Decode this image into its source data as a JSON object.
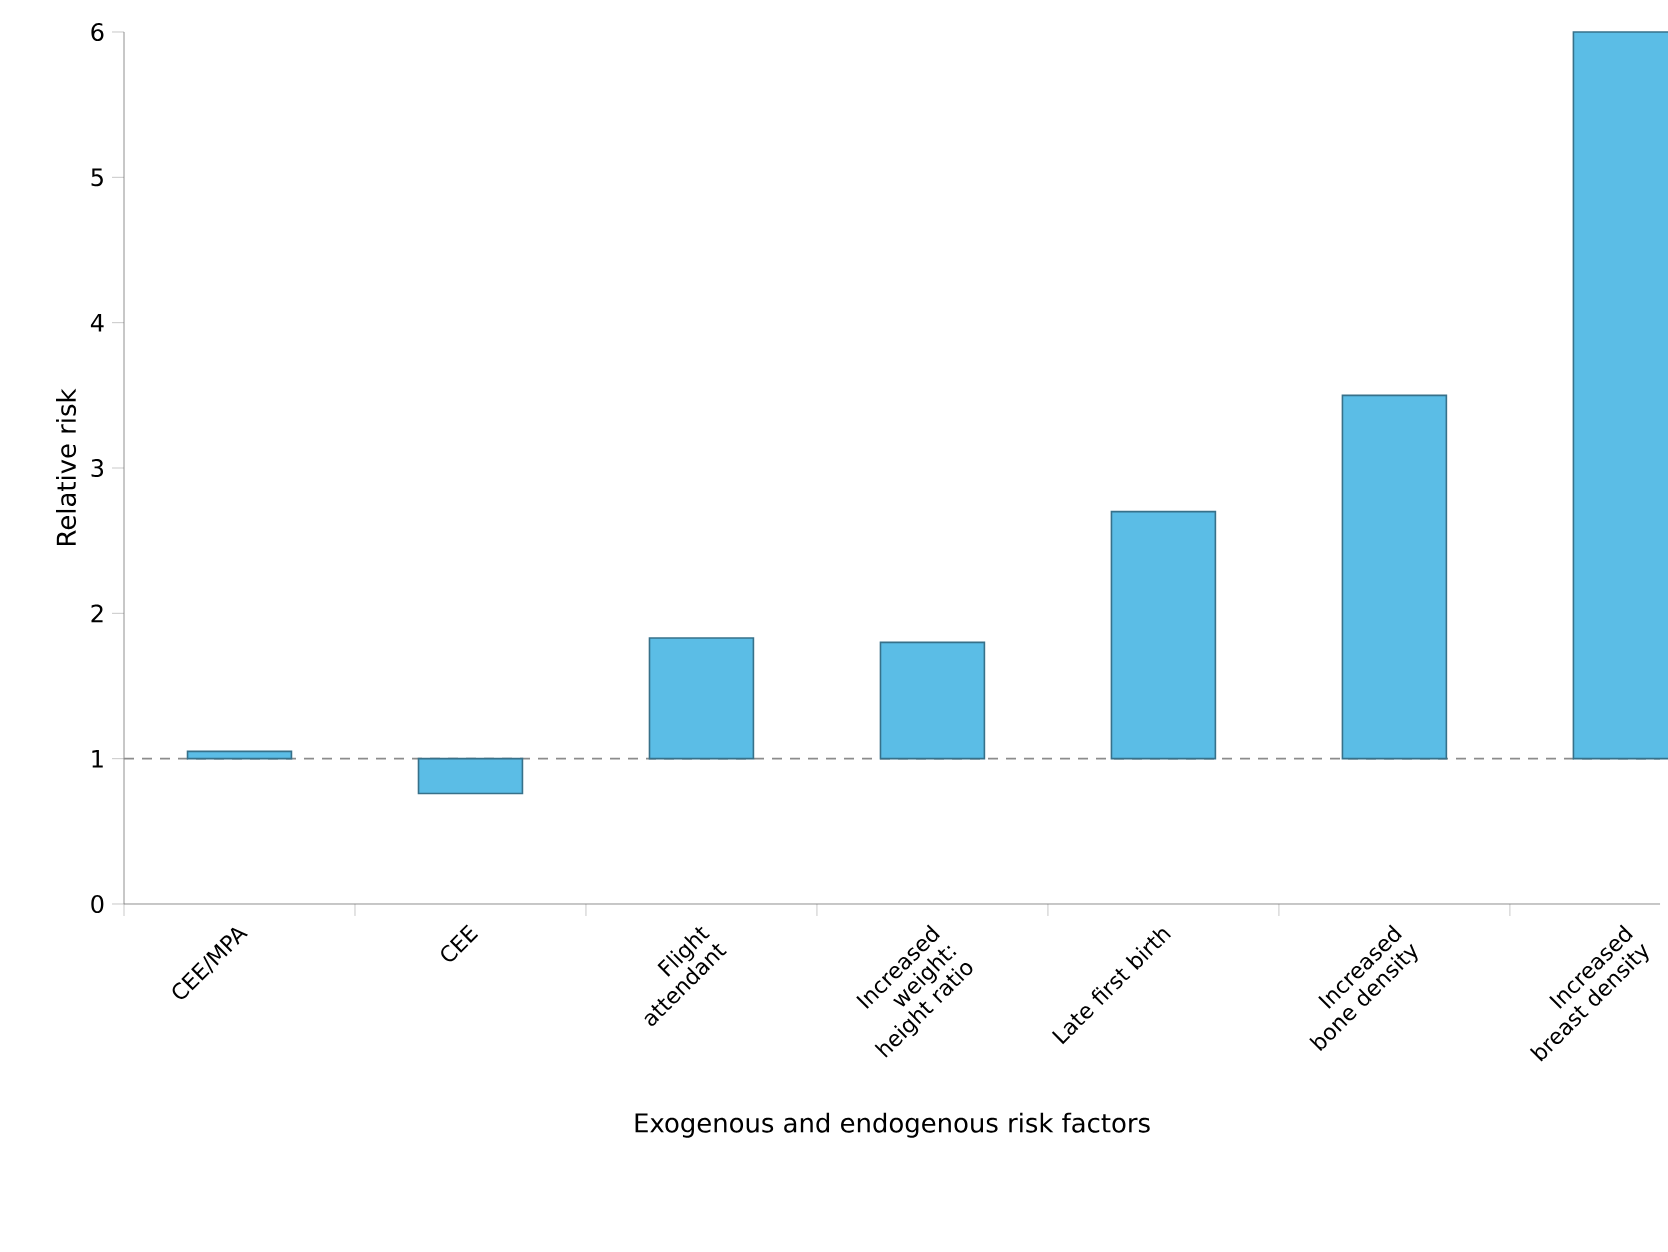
{
  "chart_data": {
    "type": "bar",
    "xlabel": "Exogenous and endogenous risk factors",
    "ylabel": "Relative risk",
    "categories": [
      "CEE/MPA",
      "CEE",
      "Flight attendant",
      "Increased weight: height ratio",
      "Late first birth",
      "Increased bone density",
      "Increased breast density"
    ],
    "base": [
      1,
      1,
      1,
      1,
      1,
      1,
      1
    ],
    "values": [
      0.05,
      -0.24,
      0.83,
      0.8,
      1.7,
      2.5,
      5.0
    ],
    "color": "#5bbde6",
    "ylim": [
      0,
      6
    ],
    "yticks": [
      0,
      1,
      2,
      3,
      4,
      5,
      6
    ],
    "ref_lines": [
      {
        "axis": "y",
        "value": 1,
        "color": "#8c8c8c",
        "line_style": "dashed"
      }
    ],
    "grid": false
  }
}
